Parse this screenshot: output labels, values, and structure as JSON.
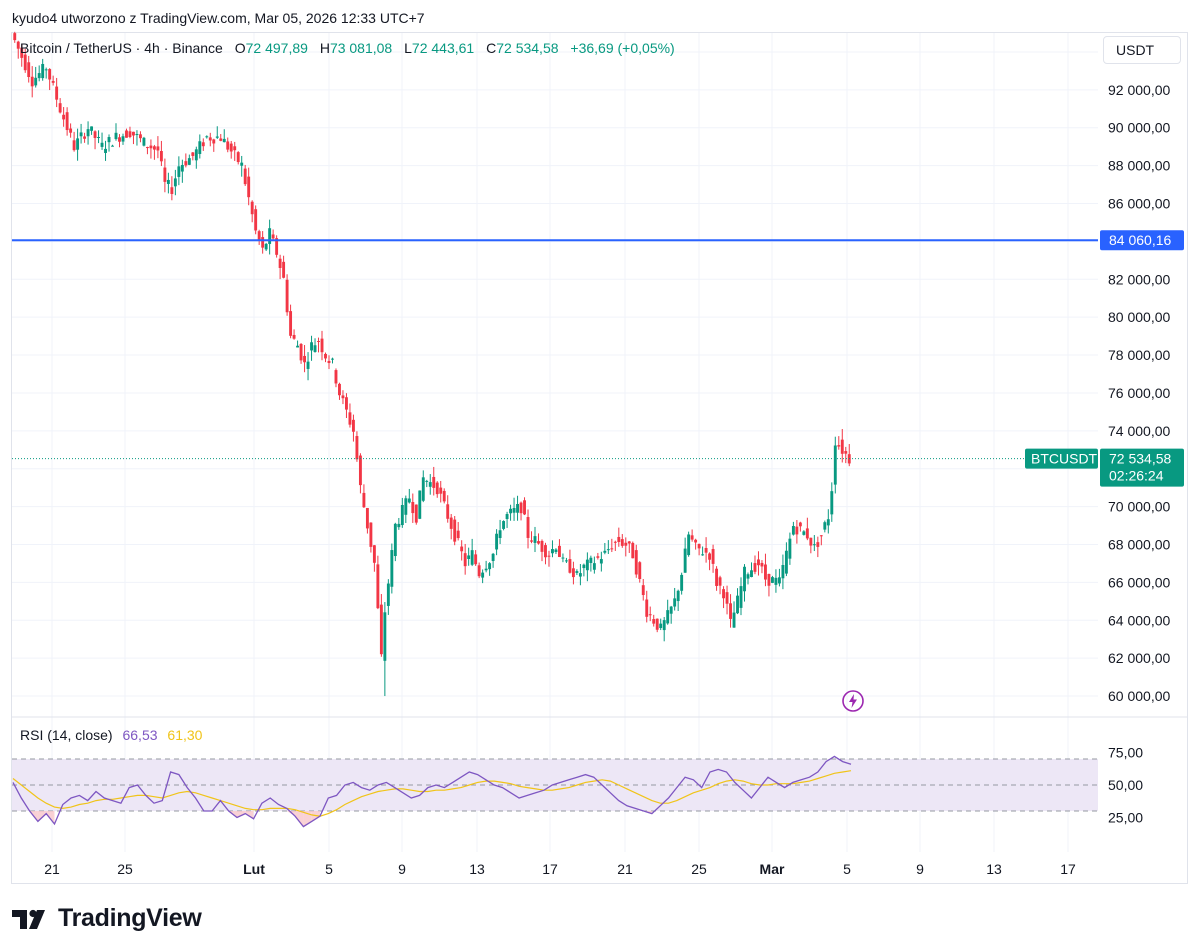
{
  "caption": "kyudo4 utworzono z TradingView.com, Mar 05, 2026 12:33 UTC+7",
  "legend": {
    "symbol": "Bitcoin / TetherUS · 4h · Binance",
    "open_label": "O",
    "open": "72 497,89",
    "high_label": "H",
    "high": "73 081,08",
    "low_label": "L",
    "low": "72 443,61",
    "close_label": "C",
    "close": "72 534,58",
    "change": "+36,69 (+0,05%)"
  },
  "currency": "USDT",
  "rsi_legend": {
    "label": "RSI (14, close)",
    "rsi": "66,53",
    "ma": "61,30"
  },
  "footer": {
    "brand": "TradingView"
  },
  "icons": {
    "logo": "tradingview-logo-icon",
    "alert": "lightning-icon"
  },
  "colors": {
    "up": "#089981",
    "down": "#f23645",
    "hline": "#2962ff",
    "rsi": "#7e57c2",
    "rsi_ma": "#f0c419",
    "rsi_band": "#ede7f6"
  },
  "chart_data": [
    {
      "type": "candlestick",
      "title": "Bitcoin / TetherUS · 4h · Binance",
      "ylim": [
        59000,
        95000
      ],
      "y_ticks": [
        "94 000,00",
        "92 000,00",
        "90 000,00",
        "88 000,00",
        "86 000,00",
        "84 000,00",
        "82 000,00",
        "80 000,00",
        "78 000,00",
        "76 000,00",
        "74 000,00",
        "72 000,00",
        "70 000,00",
        "68 000,00",
        "66 000,00",
        "64 000,00",
        "62 000,00",
        "60 000,00"
      ],
      "x_tick_labels": [
        "21",
        "25",
        "Lut",
        "5",
        "9",
        "13",
        "17",
        "21",
        "25",
        "Mar",
        "5",
        "9",
        "13",
        "17"
      ],
      "horizontal_line": {
        "value": 84060.16,
        "label": "84 060,16"
      },
      "last_price": {
        "symbol": "BTCUSDT",
        "value": 72534.58,
        "label": "72 534,58",
        "countdown": "02:26:24"
      },
      "series": [
        {
          "name": "Bitcoin / TetherUS",
          "path": [
            [
              0,
              95000
            ],
            [
              3,
              92500
            ],
            [
              5,
              93200
            ],
            [
              7,
              91000
            ],
            [
              9,
              89000
            ],
            [
              11,
              90000
            ],
            [
              13,
              89000
            ],
            [
              15,
              89500
            ],
            [
              17,
              89800
            ],
            [
              19,
              89200
            ],
            [
              21,
              88800
            ],
            [
              22,
              87000
            ],
            [
              23,
              86800
            ],
            [
              24,
              88000
            ],
            [
              26,
              88500
            ],
            [
              28,
              89500
            ],
            [
              30,
              89500
            ],
            [
              32,
              88500
            ],
            [
              33,
              88000
            ],
            [
              35,
              84500
            ],
            [
              36,
              83500
            ],
            [
              37,
              84400
            ],
            [
              38,
              83400
            ],
            [
              39,
              82000
            ],
            [
              40,
              79000
            ],
            [
              41,
              78500
            ],
            [
              42,
              77500
            ],
            [
              43,
              78500
            ],
            [
              44,
              78800
            ],
            [
              45,
              78000
            ],
            [
              46,
              77500
            ],
            [
              47,
              76000
            ],
            [
              49,
              74000
            ],
            [
              50,
              71000
            ],
            [
              52,
              67000
            ],
            [
              53,
              62000
            ],
            [
              53.5,
              64500
            ],
            [
              54,
              66000
            ],
            [
              55,
              69000
            ],
            [
              57,
              70500
            ],
            [
              58,
              69500
            ],
            [
              59,
              71500
            ],
            [
              61,
              71000
            ],
            [
              62,
              70000
            ],
            [
              63,
              69000
            ],
            [
              65,
              67000
            ],
            [
              66,
              67500
            ],
            [
              67,
              66500
            ],
            [
              69,
              67500
            ],
            [
              70,
              69000
            ],
            [
              71,
              69500
            ],
            [
              73,
              70000
            ],
            [
              74,
              68500
            ],
            [
              75,
              68200
            ],
            [
              77,
              67500
            ],
            [
              78,
              68000
            ],
            [
              79,
              67000
            ],
            [
              80,
              66800
            ],
            [
              81,
              66300
            ],
            [
              82,
              66800
            ],
            [
              83,
              67000
            ],
            [
              85,
              67500
            ],
            [
              86,
              68000
            ],
            [
              87,
              68200
            ],
            [
              88,
              68000
            ],
            [
              89,
              67500
            ],
            [
              90,
              66000
            ],
            [
              91,
              64500
            ],
            [
              92,
              64000
            ],
            [
              93,
              63500
            ],
            [
              94,
              64200
            ],
            [
              95,
              65000
            ],
            [
              96,
              66500
            ],
            [
              97,
              68500
            ],
            [
              98,
              67800
            ],
            [
              100,
              67500
            ],
            [
              101,
              66000
            ],
            [
              102,
              65500
            ],
            [
              103,
              63800
            ],
            [
              104,
              65000
            ],
            [
              105,
              66500
            ],
            [
              107,
              67000
            ],
            [
              108,
              66200
            ],
            [
              110,
              66000
            ],
            [
              111,
              67500
            ],
            [
              112,
              69000
            ],
            [
              114,
              68500
            ],
            [
              115,
              67800
            ],
            [
              116,
              68500
            ],
            [
              117,
              69500
            ],
            [
              117.5,
              71000
            ],
            [
              118,
              73500
            ],
            [
              119,
              73000
            ],
            [
              120,
              72535
            ]
          ]
        }
      ]
    },
    {
      "type": "line",
      "title": "RSI (14, close)",
      "ylim": [
        0,
        100
      ],
      "y_ticks": [
        "75,00",
        "50,00",
        "25,00"
      ],
      "bands": [
        30,
        50,
        70
      ],
      "series": [
        {
          "name": "RSI",
          "values": [
            52,
            40,
            30,
            22,
            28,
            20,
            35,
            40,
            42,
            38,
            45,
            40,
            38,
            36,
            48,
            50,
            42,
            36,
            38,
            60,
            58,
            48,
            40,
            30,
            30,
            38,
            30,
            25,
            28,
            24,
            36,
            40,
            35,
            32,
            26,
            18,
            22,
            26,
            40,
            42,
            50,
            52,
            48,
            46,
            50,
            52,
            48,
            44,
            40,
            42,
            48,
            50,
            48,
            52,
            56,
            60,
            58,
            54,
            50,
            48,
            44,
            40,
            42,
            44,
            46,
            50,
            52,
            54,
            56,
            58,
            56,
            50,
            44,
            38,
            34,
            32,
            30,
            28,
            34,
            40,
            48,
            56,
            54,
            48,
            60,
            62,
            60,
            52,
            46,
            40,
            48,
            56,
            52,
            48,
            52,
            54,
            56,
            60,
            68,
            72,
            68,
            66
          ]
        },
        {
          "name": "MA",
          "values": [
            55,
            50,
            45,
            40,
            36,
            33,
            32,
            33,
            35,
            36,
            38,
            39,
            39,
            40,
            41,
            42,
            42,
            41,
            40,
            42,
            44,
            45,
            44,
            42,
            40,
            38,
            36,
            34,
            32,
            31,
            31,
            32,
            32,
            32,
            31,
            29,
            27,
            26,
            28,
            31,
            35,
            38,
            41,
            43,
            45,
            46,
            47,
            47,
            46,
            45,
            45,
            46,
            46,
            47,
            48,
            50,
            52,
            53,
            53,
            52,
            51,
            49,
            48,
            47,
            46,
            46,
            47,
            48,
            50,
            52,
            53,
            54,
            53,
            50,
            47,
            44,
            41,
            38,
            36,
            36,
            38,
            41,
            44,
            46,
            48,
            51,
            53,
            54,
            53,
            51,
            50,
            50,
            51,
            51,
            51,
            52,
            53,
            55,
            57,
            59,
            60,
            61
          ]
        }
      ]
    }
  ]
}
